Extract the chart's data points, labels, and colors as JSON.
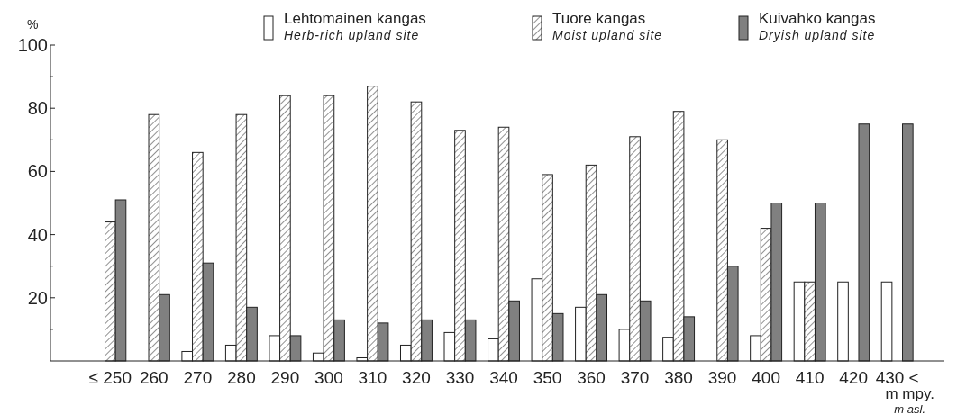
{
  "chart_data": {
    "type": "bar",
    "ylabel": "%",
    "xlabel": "m mpy.\nm asl.",
    "categories": [
      "≤ 250",
      "260",
      "270",
      "280",
      "290",
      "300",
      "310",
      "320",
      "330",
      "340",
      "350",
      "360",
      "370",
      "380",
      "390",
      "400",
      "410",
      "420",
      "430 <"
    ],
    "series": [
      {
        "name": "Lehtomainen kangas\nHerb-rich upland site",
        "color": "#ffffff",
        "values": [
          null,
          null,
          3,
          5,
          8,
          2.5,
          1,
          5,
          9,
          7,
          26,
          17,
          10,
          7.5,
          null,
          8,
          25,
          25,
          25
        ]
      },
      {
        "name": "Tuore kangas\nMoist upland site",
        "color": "#222222",
        "values": [
          44,
          78,
          66,
          78,
          84,
          84,
          87,
          82,
          73,
          74,
          59,
          62,
          71,
          79,
          70,
          42,
          25,
          null,
          null
        ]
      },
      {
        "name": "Kuivahko kangas\nDryish upland site",
        "color": "#808080",
        "values": [
          51,
          21,
          31,
          17,
          8,
          13,
          12,
          13,
          13,
          19,
          15,
          21,
          19,
          14,
          30,
          50,
          50,
          75,
          75
        ]
      }
    ],
    "ylim": [
      0,
      100
    ],
    "yticks": [
      {
        "value": 10,
        "label": null
      },
      20,
      {
        "value": 30,
        "label": null
      },
      40,
      {
        "value": 50,
        "label": null
      },
      60,
      {
        "value": 70,
        "label": null
      },
      80,
      {
        "value": 90,
        "label": null
      },
      100
    ],
    "grid": false,
    "legend": "top right"
  }
}
